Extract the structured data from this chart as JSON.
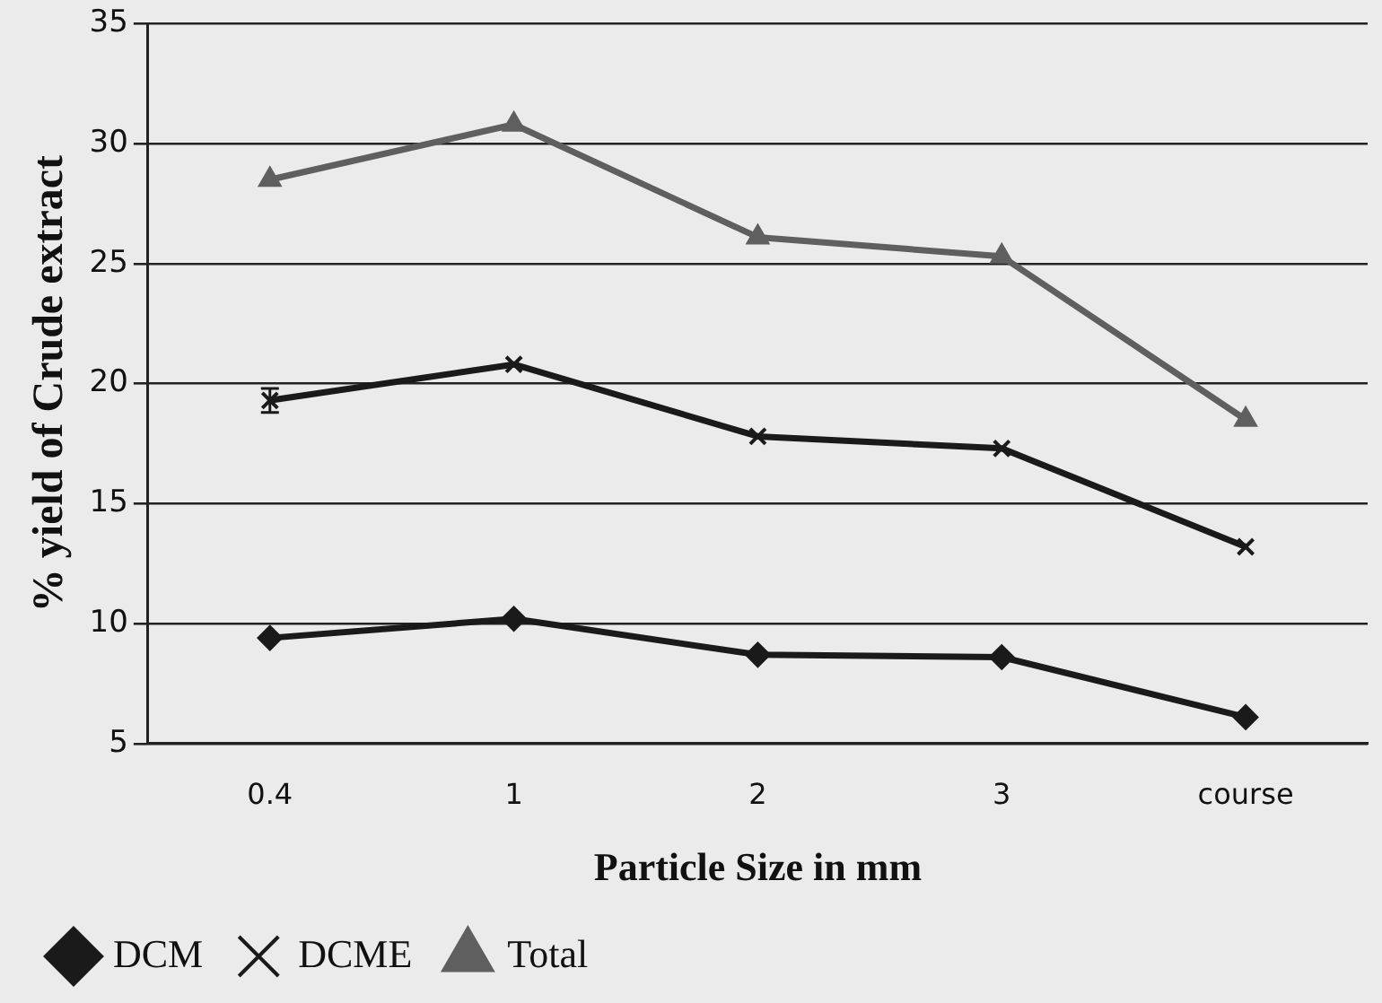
{
  "chart_data": {
    "type": "line",
    "xlabel": "Particle Size in mm",
    "ylabel": "% yield of Crude extract",
    "categories": [
      "0.4",
      "1",
      "2",
      "3",
      "course"
    ],
    "series": [
      {
        "name": "DCM",
        "color": "#1a1a1a",
        "marker": "diamond",
        "values": [
          9.4,
          10.2,
          8.7,
          8.6,
          6.1
        ]
      },
      {
        "name": "DCME",
        "color": "#1a1a1a",
        "marker": "cross",
        "values": [
          19.3,
          20.8,
          17.8,
          17.3,
          13.2
        ],
        "errors": [
          0.5,
          null,
          null,
          null,
          null
        ]
      },
      {
        "name": "Total",
        "color": "#5f5f5f",
        "marker": "triangle",
        "values": [
          28.5,
          30.8,
          26.1,
          25.3,
          18.5
        ]
      }
    ],
    "ylim": [
      5,
      35
    ],
    "yticks": [
      5,
      10,
      15,
      20,
      25,
      30,
      35
    ],
    "grid": "y",
    "legend": "bottom",
    "line_style": "solid"
  }
}
